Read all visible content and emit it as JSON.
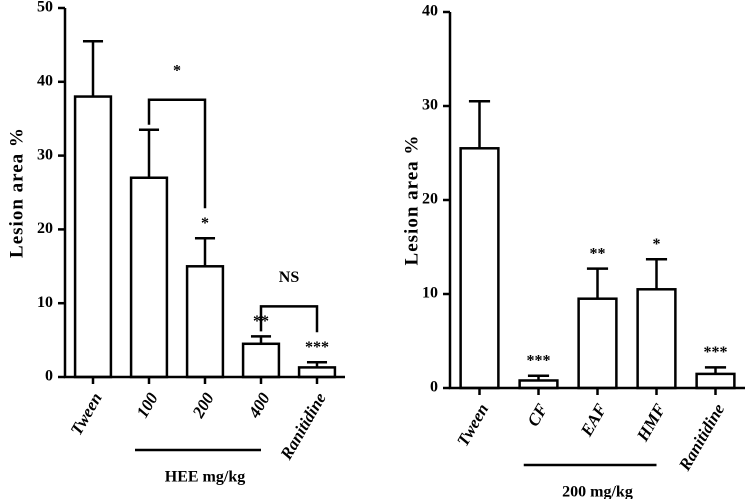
{
  "chart_data": [
    {
      "type": "bar",
      "y_label": "Lesion area %",
      "categories": [
        "Tween",
        "100",
        "200",
        "400",
        "Ranitidine"
      ],
      "values": [
        38,
        27,
        15,
        4.5,
        1.3
      ],
      "errors": [
        7.5,
        6.5,
        3.8,
        1,
        0.7
      ],
      "significance": [
        null,
        null,
        "*",
        "**",
        "***"
      ],
      "brackets": [
        {
          "categories": [
            "100",
            "200"
          ],
          "label": "*"
        },
        {
          "categories": [
            "400",
            "Ranitidine"
          ],
          "label": "NS"
        }
      ],
      "group_label": "HEE mg/kg",
      "group_span": [
        "100",
        "400"
      ],
      "color": "#ffffff",
      "ylim": [
        0,
        50
      ],
      "yticks": [
        0,
        10,
        20,
        30,
        40,
        50
      ]
    },
    {
      "type": "bar",
      "y_label": "Lesion area %",
      "categories": [
        "Tween",
        "CF",
        "EAF",
        "HMF",
        "Ranitidine"
      ],
      "values": [
        25.5,
        0.8,
        9.5,
        10.5,
        1.5
      ],
      "errors": [
        5,
        0.5,
        3.2,
        3.2,
        0.7
      ],
      "significance": [
        null,
        "***",
        "**",
        "*",
        "***"
      ],
      "brackets": [],
      "group_label": "200 mg/kg",
      "group_span": [
        "CF",
        "HMF"
      ],
      "color": "#ffffff",
      "ylim": [
        0,
        40
      ],
      "yticks": [
        0,
        10,
        20,
        30,
        40
      ]
    }
  ]
}
